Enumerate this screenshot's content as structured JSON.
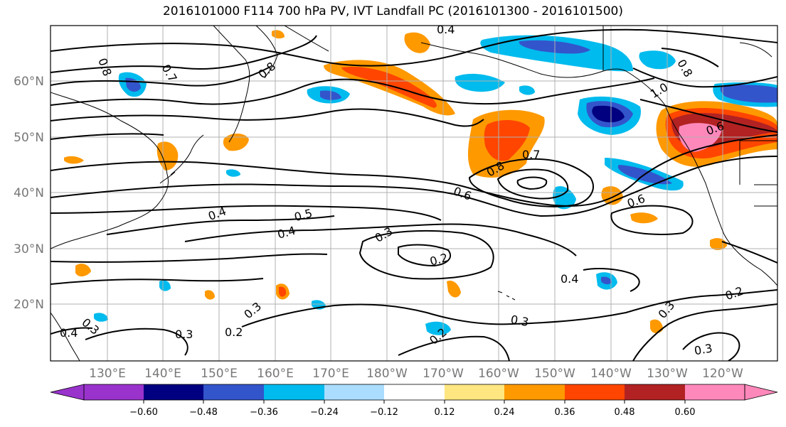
{
  "title": "2016101000 F114 700 hPa PV, IVT Landfall PC (2016101300 - 2016101500)",
  "lat_labels": [
    "60°N",
    "50°N",
    "40°N",
    "30°N",
    "20°N"
  ],
  "lon_labels": [
    "130°E",
    "140°E",
    "150°E",
    "160°E",
    "170°E",
    "180°W",
    "170°W",
    "160°W",
    "150°W",
    "140°W",
    "130°W",
    "120°W"
  ],
  "contour_labels": [
    "0.4",
    "0.8",
    "0.7",
    "0.8",
    "0.8",
    "1.0",
    "0.6",
    "0.7",
    "0.8",
    "0.6",
    "0.6",
    "0.4",
    "0.5",
    "0.4",
    "0.3",
    "0.2",
    "0.4",
    "0.3",
    "0.3",
    "0.2",
    "0.3",
    "0.2",
    "0.2",
    "0.3",
    "0.3",
    "0.4",
    "0.3"
  ],
  "colorbar": {
    "colors": [
      "#9933cc",
      "#000080",
      "#3355cc",
      "#00bbee",
      "#aaddff",
      "#ffffff",
      "#ffe680",
      "#ff9900",
      "#ff4500",
      "#b22222",
      "#ff88bb"
    ],
    "ticks": [
      "−0.60",
      "−0.48",
      "−0.36",
      "−0.24",
      "−0.12",
      "0.12",
      "0.24",
      "0.36",
      "0.48",
      "0.60"
    ]
  },
  "chart_data": {
    "type": "heatmap",
    "title": "2016101000 F114 700 hPa PV, IVT Landfall PC (2016101300 - 2016101500)",
    "lat_range": [
      "10°N",
      "70°N"
    ],
    "lon_range": [
      "120°E",
      "110°W"
    ],
    "contour_levels": [
      0.2,
      0.3,
      0.4,
      0.5,
      0.6,
      0.7,
      0.8,
      1.0
    ],
    "shading_levels": [
      -0.6,
      -0.48,
      -0.36,
      -0.24,
      -0.12,
      0.12,
      0.24,
      0.36,
      0.48,
      0.6
    ]
  }
}
